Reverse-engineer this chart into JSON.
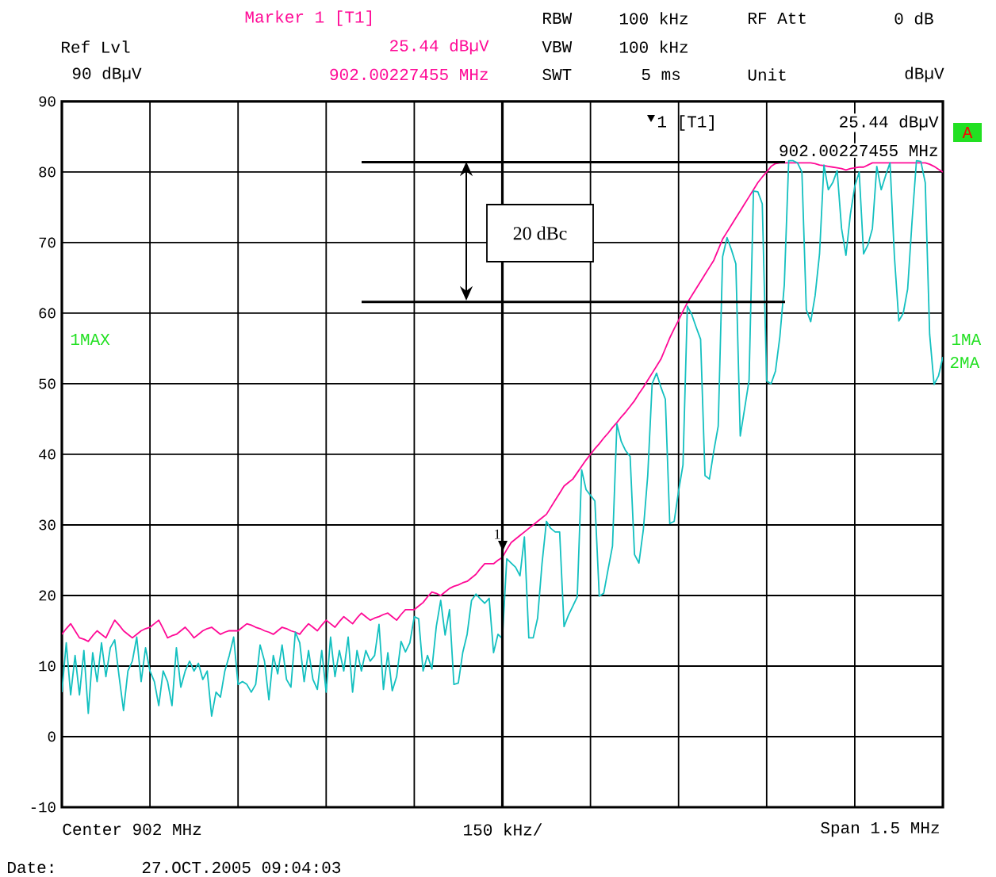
{
  "chart_data": {
    "type": "line",
    "categories": [
      null,
      null,
      null,
      null,
      null,
      null,
      null,
      null,
      null,
      null,
      null,
      null,
      null,
      null,
      null,
      null,
      null,
      null,
      null,
      null,
      null,
      null,
      null,
      null,
      null,
      null,
      null,
      null,
      null,
      null,
      null,
      null,
      null,
      null,
      null,
      null,
      null,
      null,
      null,
      null,
      null,
      null,
      null,
      null,
      null,
      null,
      null,
      null,
      null,
      null,
      null,
      null,
      null,
      null,
      null,
      null,
      null,
      null,
      null,
      null,
      null,
      null,
      null,
      null,
      null,
      null,
      null,
      null,
      null,
      null,
      null,
      null,
      null,
      null,
      null,
      null,
      null,
      null,
      null,
      null,
      null,
      null,
      null,
      null,
      null,
      null,
      null,
      null,
      null,
      null,
      null,
      null,
      null,
      null,
      null,
      null,
      null,
      null,
      null,
      null,
      null,
      null,
      null,
      null,
      null,
      null,
      null,
      null,
      null,
      null,
      null,
      null,
      null,
      null,
      null,
      null,
      null,
      null,
      null,
      null,
      null,
      null,
      null,
      null,
      null,
      null,
      null,
      null,
      null,
      null,
      null,
      null,
      null,
      null,
      null,
      null,
      null,
      null,
      null,
      null,
      null,
      null,
      null,
      null,
      null,
      null,
      null,
      null,
      null,
      null,
      null,
      null,
      null,
      null,
      null,
      null,
      null,
      null,
      null,
      null,
      null,
      null,
      null,
      null,
      null,
      null,
      null,
      null,
      null,
      null,
      null,
      null,
      null,
      null,
      null,
      null,
      null,
      null,
      null,
      null,
      null,
      null,
      null,
      null,
      null,
      null,
      null,
      null,
      null,
      null,
      null,
      null,
      null,
      null,
      null,
      null,
      null,
      null,
      null,
      null,
      null
    ],
    "ylim": [
      -10,
      90
    ],
    "yticks": [
      -10,
      0,
      10,
      20,
      30,
      40,
      50,
      60,
      70,
      80,
      90
    ],
    "grid": true,
    "marker": "none",
    "line_style": "solid",
    "series": [
      {
        "color": "#ff0a96",
        "values": [
          14.5,
          15.3,
          16,
          15,
          14,
          13.8,
          13.5,
          14.3,
          15,
          14.5,
          14,
          15.3,
          16.5,
          15.8,
          15,
          14.5,
          14,
          14.5,
          15,
          15.3,
          15.5,
          16,
          16.5,
          15.3,
          14,
          14.3,
          14.5,
          15,
          15.5,
          14.8,
          14,
          14.5,
          15,
          15.3,
          15.5,
          15,
          14.5,
          14.8,
          15,
          15,
          15,
          15.5,
          16,
          15.8,
          15.5,
          15.3,
          15,
          14.8,
          14.5,
          15,
          15.5,
          15.3,
          15,
          14.8,
          14.5,
          15.3,
          16,
          15.5,
          15,
          15.8,
          16.5,
          16,
          15.5,
          16.3,
          17,
          16.5,
          16,
          16.8,
          17.5,
          17,
          16.5,
          16.8,
          17,
          17.3,
          17.5,
          17,
          16.5,
          17.3,
          18,
          18,
          18,
          18.5,
          19,
          19.8,
          20.5,
          20.3,
          20,
          20.5,
          21,
          21.3,
          21.5,
          21.8,
          22,
          22.5,
          23,
          23.8,
          24.5,
          24.5,
          24.5,
          25,
          25.4,
          26.5,
          27.5,
          28,
          28.5,
          29,
          29.5,
          30,
          30.5,
          31,
          31.5,
          32.5,
          33.5,
          34.5,
          35.5,
          36,
          36.5,
          37.4,
          38.3,
          39.2,
          40,
          40.8,
          41.5,
          42.3,
          43,
          43.8,
          44.5,
          45.3,
          46,
          46.8,
          47.6,
          48.6,
          49.5,
          50.5,
          51.5,
          52.5,
          53.5,
          55,
          56.5,
          57.8,
          59,
          60.3,
          61.5,
          62.5,
          63.5,
          64.5,
          65.5,
          66.5,
          67.5,
          69,
          70.5,
          71.5,
          72.5,
          73.5,
          74.5,
          75.5,
          76.5,
          77.5,
          78.5,
          79.3,
          80,
          80.8,
          81.2,
          81.3,
          81.3,
          81.3,
          81.3,
          81.3,
          81.3,
          81.3,
          81.3,
          81.2,
          81,
          80.9,
          80.8,
          80.7,
          80.6,
          80.5,
          80.3,
          80.5,
          80.6,
          80.7,
          80.7,
          81,
          81.3,
          81.3,
          81.3,
          81.3,
          81.3,
          81.3,
          81.3,
          81.3,
          81.3,
          81.3,
          81.3,
          81.3,
          81.3,
          81.1,
          80.8,
          80.4,
          80
        ]
      },
      {
        "color": "#14c0c0",
        "values": [
          6.3,
          13.3,
          5.9,
          11.5,
          5.9,
          12.2,
          3.3,
          11.9,
          7.8,
          13.3,
          8.5,
          12.6,
          13.7,
          8.5,
          3.7,
          9.3,
          10.7,
          14.1,
          7.8,
          12.6,
          9.3,
          7.8,
          4.4,
          9.3,
          7.8,
          4.4,
          12.6,
          7,
          9.3,
          10.7,
          9.3,
          10.4,
          8.1,
          9.3,
          2.9,
          6.3,
          5.6,
          9.3,
          11.5,
          14.1,
          7.4,
          7.8,
          7.4,
          6.3,
          7.4,
          13,
          10.7,
          5.2,
          11.5,
          8.9,
          13,
          8.1,
          7,
          14.8,
          13.3,
          7.8,
          12.2,
          8.1,
          6.7,
          12.2,
          6.3,
          14.1,
          8.5,
          12.2,
          9.3,
          14.1,
          6.3,
          12.2,
          9.3,
          12.2,
          10.7,
          11.5,
          15.9,
          6.7,
          11.9,
          6.5,
          8.5,
          13.5,
          12,
          13.3,
          17,
          16.7,
          9.3,
          11.5,
          9.6,
          15.6,
          19.3,
          14.4,
          18,
          7.4,
          7.6,
          11.9,
          14.5,
          19.3,
          20.2,
          19.5,
          18.9,
          19.6,
          11.9,
          14.5,
          13.9,
          25.2,
          24.6,
          24,
          22.8,
          28.3,
          14,
          14,
          16.8,
          24.5,
          30.5,
          29.5,
          29,
          29,
          15.6,
          17.2,
          18.5,
          19.8,
          37.8,
          35,
          34.2,
          33.4,
          19.9,
          20.3,
          23.7,
          27,
          44.3,
          41.8,
          40.5,
          39.7,
          25.8,
          24.6,
          29.3,
          37,
          50,
          51.5,
          49.5,
          47.8,
          30.2,
          30.5,
          34.8,
          38.5,
          61,
          59.8,
          58,
          56.3,
          37,
          36.5,
          40.5,
          44,
          68,
          70.7,
          69,
          67,
          42.6,
          46.5,
          50.5,
          77.3,
          77.2,
          75.5,
          50.4,
          50,
          51.8,
          56.7,
          64,
          81.6,
          81.6,
          81.3,
          80,
          60.5,
          58.8,
          62.5,
          68.4,
          81,
          77.5,
          78.5,
          80.2,
          72,
          68.2,
          74,
          78,
          80,
          68.4,
          69.7,
          72,
          80.8,
          77.5,
          79.5,
          81.3,
          68,
          58.9,
          60,
          63.4,
          73,
          81.6,
          81.5,
          78.5,
          57,
          49.9,
          51.1,
          53.8
        ]
      }
    ],
    "ref_lines": [
      {
        "axis": "y",
        "value": 81.4
      },
      {
        "axis": "y",
        "value": 61.6
      }
    ],
    "annotations": [
      "Ref Lvl",
      "90 dBµV",
      "Marker 1 [T1]",
      "25.44 dBµV",
      "902.00227455 MHz",
      "RBW",
      "100 kHz",
      "VBW",
      "100 kHz",
      "SWT",
      "5 ms",
      "RF Att",
      "0 dB",
      "Unit",
      "dBµV",
      "1 [T1]",
      "25.44 dBµV",
      "902.00227455 MHz",
      "1MAX",
      "1MA",
      "2MA",
      "A",
      "Center 902 MHz",
      "150 kHz/",
      "Span 1.5 MHz",
      "Date:",
      "27.OCT.2005  09:04:03",
      "20 dBc",
      "1"
    ]
  }
}
